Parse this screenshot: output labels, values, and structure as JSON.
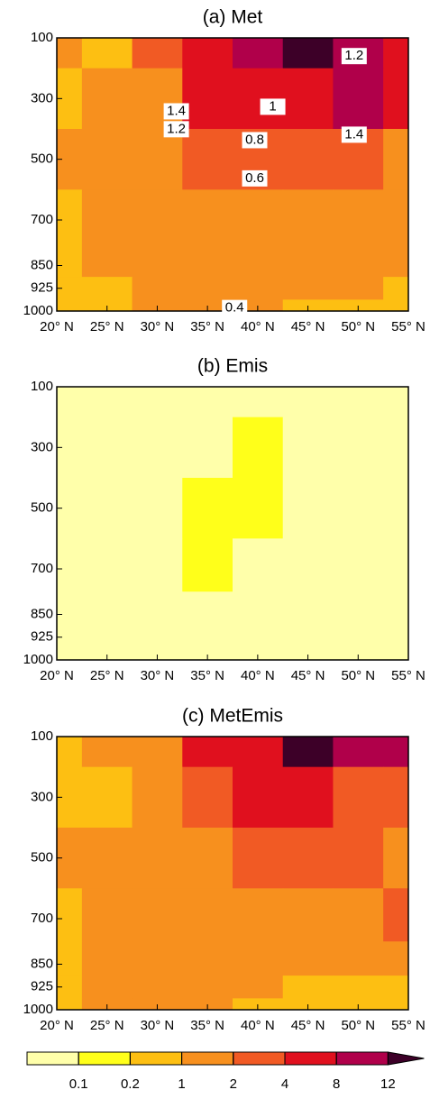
{
  "chart_data": [
    {
      "type": "contour",
      "title": "(a) Met",
      "x": [
        20,
        25,
        30,
        35,
        40,
        45,
        50,
        55
      ],
      "y": [
        100,
        300,
        500,
        700,
        850,
        925,
        1000
      ],
      "values": [
        [
          1.5,
          0.5,
          3,
          6,
          10,
          15,
          10,
          6
        ],
        [
          0.5,
          1.5,
          1.5,
          6,
          6,
          6,
          10,
          6
        ],
        [
          1.5,
          1.5,
          1.5,
          3,
          3,
          3,
          3,
          1.5
        ],
        [
          0.5,
          1.5,
          1.5,
          1.5,
          1.5,
          1.5,
          1.5,
          1.5
        ],
        [
          0.5,
          1.5,
          1.5,
          1.5,
          1.5,
          1.5,
          1.5,
          1.5
        ],
        [
          0.5,
          0.5,
          1.5,
          1.5,
          1.5,
          1.5,
          1.5,
          0.5
        ],
        [
          0.5,
          0.5,
          1.5,
          1.5,
          1.5,
          0.5,
          0.5,
          0.5
        ]
      ],
      "xlim": [
        20,
        55
      ],
      "ylim": [
        1000,
        100
      ],
      "xticks": [
        {
          "value": 20,
          "label": "20° N"
        },
        {
          "value": 25,
          "label": "25° N"
        },
        {
          "value": 30,
          "label": "30° N"
        },
        {
          "value": 35,
          "label": "35° N"
        },
        {
          "value": 40,
          "label": "40° N"
        },
        {
          "value": 45,
          "label": "45° N"
        },
        {
          "value": 50,
          "label": "50° N"
        },
        {
          "value": 55,
          "label": "55° N"
        }
      ],
      "yticks": [
        100,
        300,
        500,
        700,
        850,
        925,
        1000
      ],
      "annotations": [
        {
          "text": "1.2",
          "x": 49.6,
          "y": 160
        },
        {
          "text": "1.4",
          "x": 31.9,
          "y": 342
        },
        {
          "text": "1.2",
          "x": 31.9,
          "y": 401
        },
        {
          "text": "1",
          "x": 41.5,
          "y": 327
        },
        {
          "text": "0.8",
          "x": 39.7,
          "y": 437
        },
        {
          "text": "0.6",
          "x": 39.7,
          "y": 563
        },
        {
          "text": "1.4",
          "x": 49.6,
          "y": 419
        },
        {
          "text": "0.4",
          "x": 37.7,
          "y": 990
        }
      ]
    },
    {
      "type": "contour",
      "title": "(b) Emis",
      "x": [
        20,
        25,
        30,
        35,
        40,
        45,
        50,
        55
      ],
      "y": [
        100,
        300,
        500,
        700,
        850,
        925,
        1000
      ],
      "values": [
        [
          0.05,
          0.05,
          0.05,
          0.05,
          0.05,
          0.05,
          0.05,
          0.05
        ],
        [
          0.05,
          0.05,
          0.05,
          0.05,
          0.15,
          0.05,
          0.05,
          0.05
        ],
        [
          0.05,
          0.05,
          0.05,
          0.15,
          0.15,
          0.05,
          0.05,
          0.05
        ],
        [
          0.05,
          0.05,
          0.05,
          0.15,
          0.05,
          0.05,
          0.05,
          0.05
        ],
        [
          0.05,
          0.05,
          0.05,
          0.05,
          0.05,
          0.05,
          0.05,
          0.05
        ],
        [
          0.05,
          0.05,
          0.05,
          0.05,
          0.05,
          0.05,
          0.05,
          0.05
        ],
        [
          0.05,
          0.05,
          0.05,
          0.05,
          0.05,
          0.05,
          0.05,
          0.05
        ]
      ],
      "xlim": [
        20,
        55
      ],
      "ylim": [
        1000,
        100
      ],
      "xticks": [
        {
          "value": 20,
          "label": "20° N"
        },
        {
          "value": 25,
          "label": "25° N"
        },
        {
          "value": 30,
          "label": "30° N"
        },
        {
          "value": 35,
          "label": "35° N"
        },
        {
          "value": 40,
          "label": "40° N"
        },
        {
          "value": 45,
          "label": "45° N"
        },
        {
          "value": 50,
          "label": "50° N"
        },
        {
          "value": 55,
          "label": "55° N"
        }
      ],
      "yticks": [
        100,
        300,
        500,
        700,
        850,
        925,
        1000
      ]
    },
    {
      "type": "contour",
      "title": "(c) MetEmis",
      "x": [
        20,
        25,
        30,
        35,
        40,
        45,
        50,
        55
      ],
      "y": [
        100,
        300,
        500,
        700,
        850,
        925,
        1000
      ],
      "values": [
        [
          0.5,
          1.5,
          1.5,
          6,
          6,
          15,
          10,
          10
        ],
        [
          0.5,
          0.5,
          1.5,
          3,
          6,
          6,
          3,
          3
        ],
        [
          1.5,
          1.5,
          1.5,
          1.5,
          3,
          3,
          3,
          1.5
        ],
        [
          0.5,
          1.5,
          1.5,
          1.5,
          1.5,
          1.5,
          1.5,
          3
        ],
        [
          0.5,
          1.5,
          1.5,
          1.5,
          1.5,
          1.5,
          1.5,
          1.5
        ],
        [
          0.5,
          1.5,
          1.5,
          1.5,
          1.5,
          0.5,
          0.5,
          0.5
        ],
        [
          0.5,
          1.5,
          1.5,
          1.5,
          0.5,
          0.5,
          0.5,
          0.5
        ]
      ],
      "xlim": [
        20,
        55
      ],
      "ylim": [
        1000,
        100
      ],
      "xticks": [
        {
          "value": 20,
          "label": "20° N"
        },
        {
          "value": 25,
          "label": "25° N"
        },
        {
          "value": 30,
          "label": "30° N"
        },
        {
          "value": 35,
          "label": "35° N"
        },
        {
          "value": 40,
          "label": "40° N"
        },
        {
          "value": 45,
          "label": "45° N"
        },
        {
          "value": 50,
          "label": "50° N"
        },
        {
          "value": 55,
          "label": "55° N"
        }
      ],
      "yticks": [
        100,
        300,
        500,
        700,
        850,
        925,
        1000
      ]
    }
  ],
  "colorbar": {
    "levels": [
      0.1,
      0.2,
      1,
      2,
      4,
      8,
      12
    ],
    "colors": [
      "#ffffaa",
      "#ffff1a",
      "#fdbf12",
      "#f7901e",
      "#f15a24",
      "#e0101e",
      "#b0004a",
      "#3d0028"
    ]
  }
}
